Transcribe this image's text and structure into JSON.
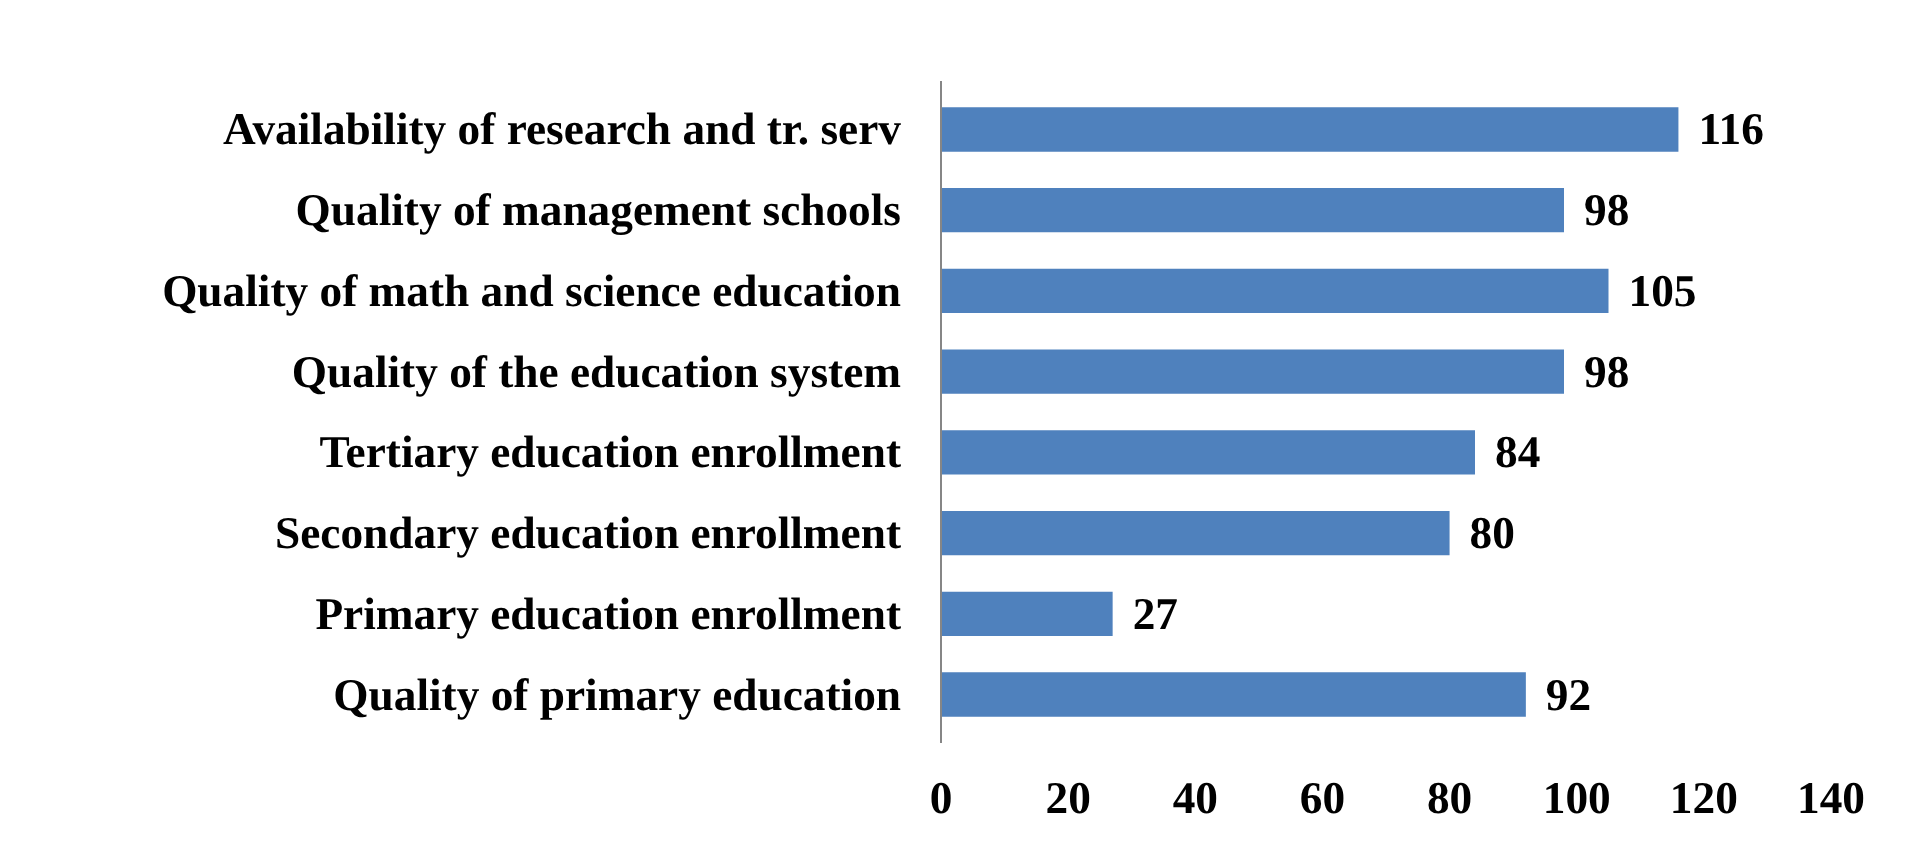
{
  "chart_data": {
    "type": "bar",
    "orientation": "horizontal",
    "categories": [
      "Availability of research and tr. serv",
      "Quality of management schools",
      "Quality of math and science education",
      "Quality of the education system",
      "Tertiary education enrollment",
      "Secondary education enrollment",
      "Primary education enrollment",
      "Quality of primary education"
    ],
    "values": [
      116,
      98,
      105,
      98,
      84,
      80,
      27,
      92
    ],
    "color": "#4f81bd",
    "xlim": [
      0,
      140
    ],
    "xticks": [
      0,
      20,
      40,
      60,
      80,
      100,
      120,
      140
    ],
    "grid": false,
    "data_labels": true
  }
}
